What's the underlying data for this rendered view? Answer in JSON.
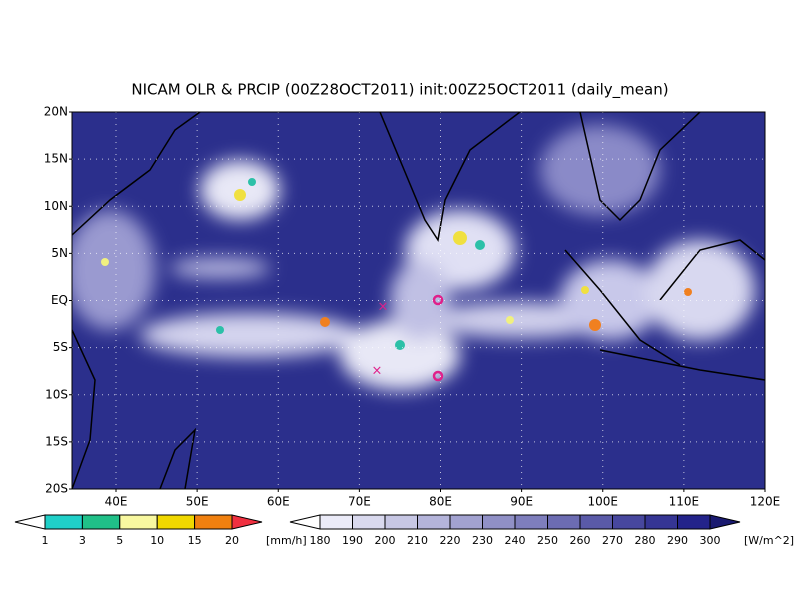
{
  "title": "NICAM OLR & PRCIP (00Z28OCT2011) init:00Z25OCT2011 (daily_mean)",
  "lat_labels": [
    "20N",
    "15N",
    "10N",
    "5N",
    "EQ",
    "5S",
    "10S",
    "15S",
    "20S"
  ],
  "lon_labels": [
    "40E",
    "50E",
    "60E",
    "70E",
    "80E",
    "90E",
    "100E",
    "110E",
    "120E"
  ],
  "precip_colorbar": {
    "labels": [
      "1",
      "3",
      "5",
      "10",
      "15",
      "20"
    ],
    "units": "[mm/h]"
  },
  "olr_colorbar": {
    "labels": [
      "180",
      "190",
      "200",
      "210",
      "220",
      "230",
      "240",
      "250",
      "260",
      "270",
      "280",
      "290",
      "300"
    ],
    "units": "[W/m^2]"
  }
}
